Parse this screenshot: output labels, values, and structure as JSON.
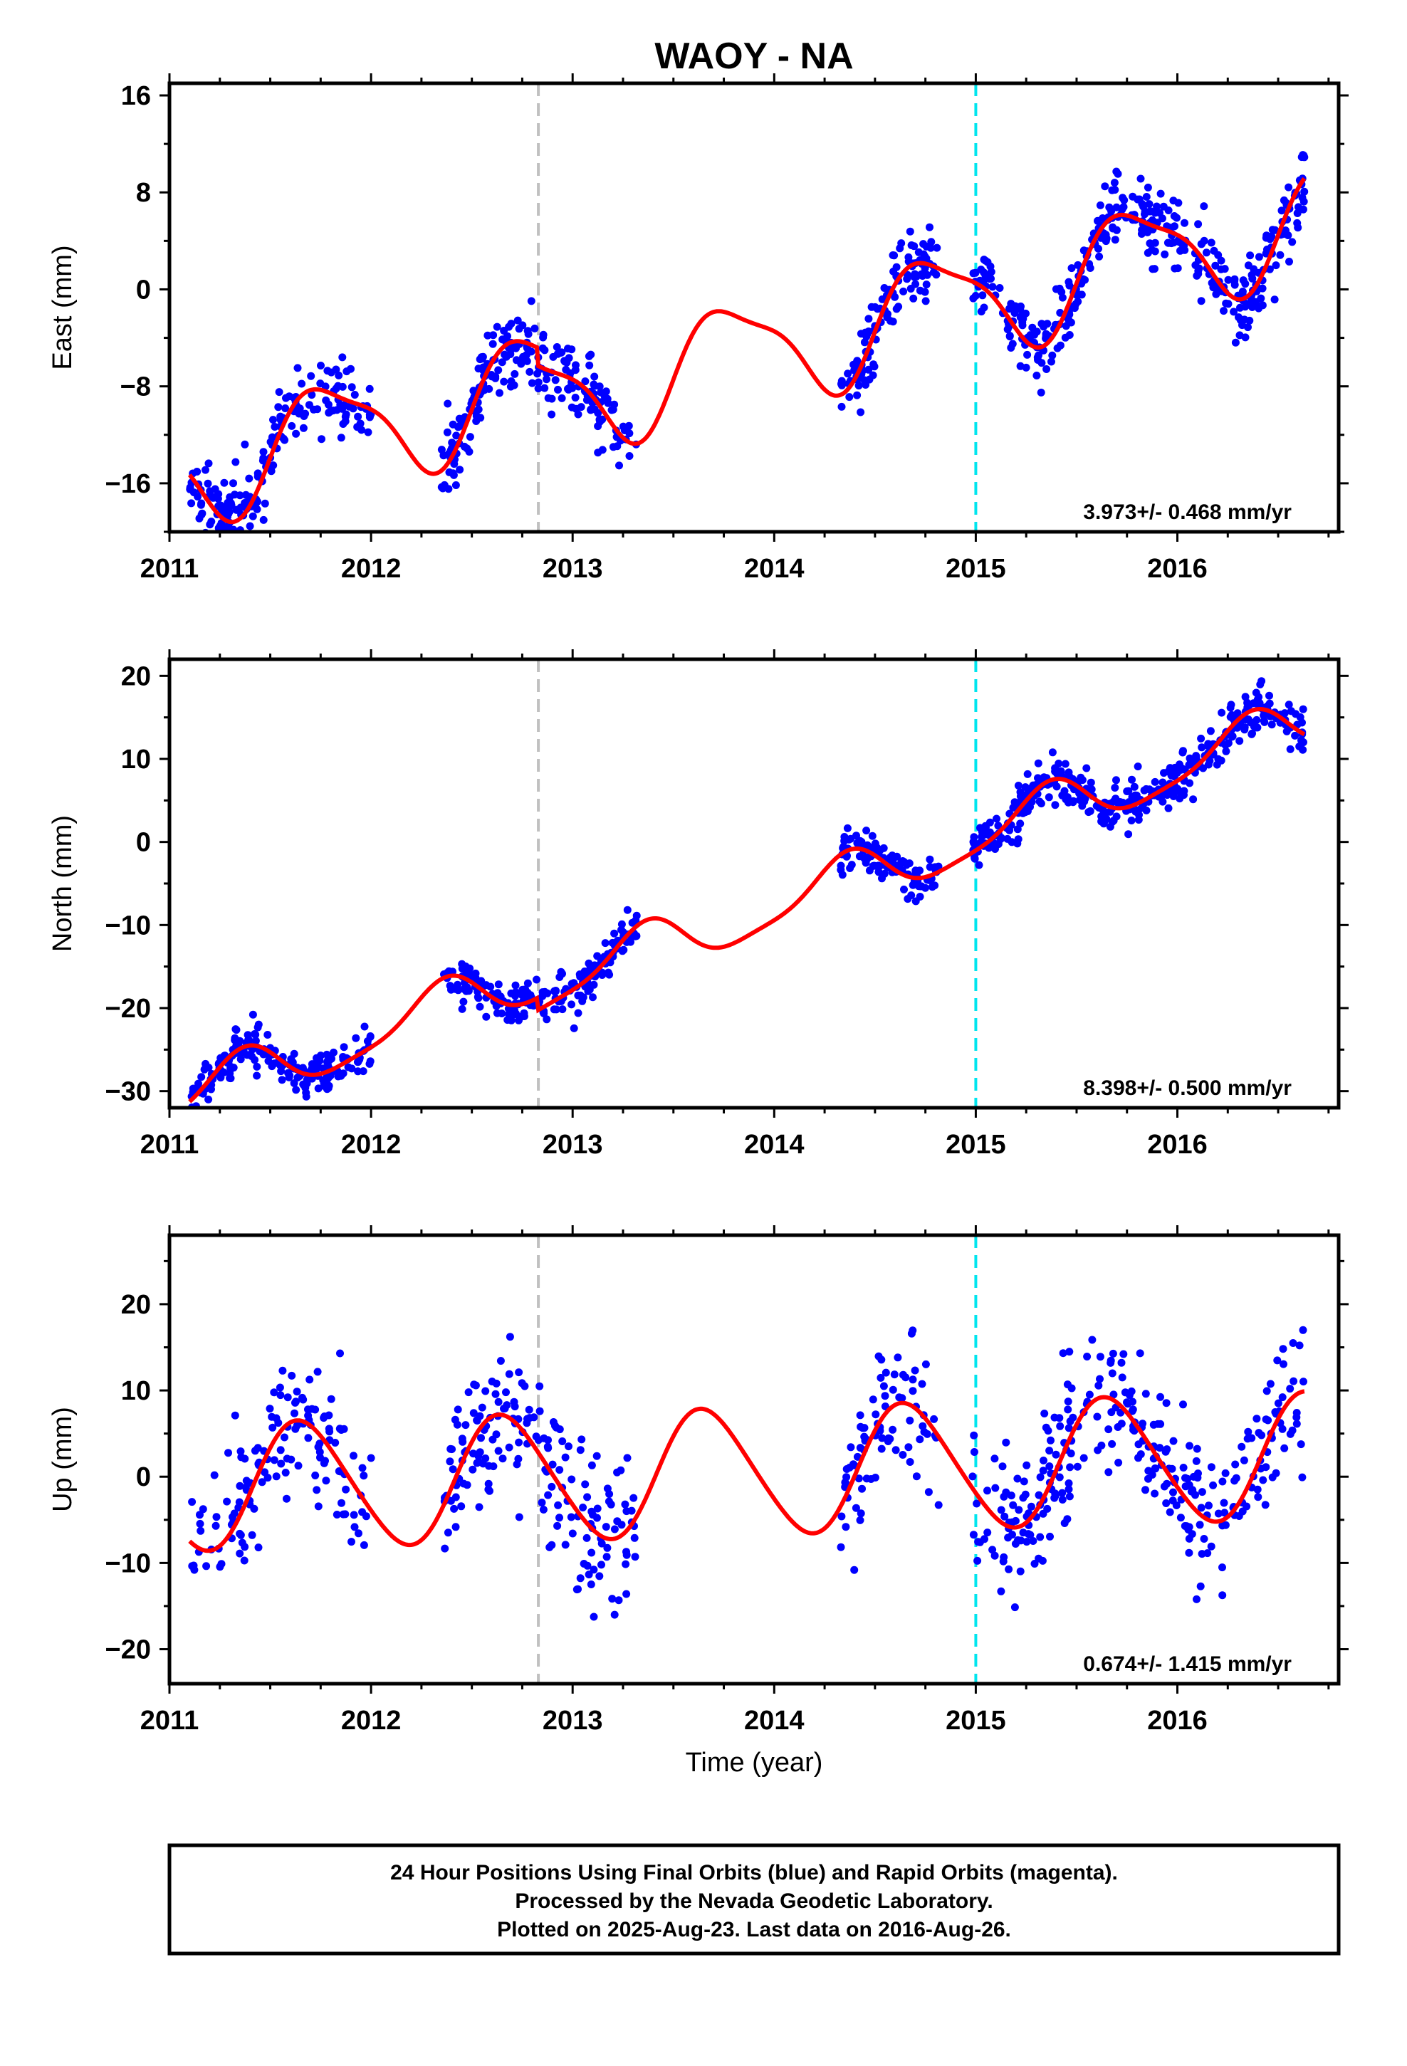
{
  "title": "WAOY - NA",
  "xlabel": "Time (year)",
  "footer": {
    "line1": "24 Hour Positions Using Final Orbits (blue) and Rapid Orbits (magenta).",
    "line2": "Processed by the Nevada Geodetic Laboratory.",
    "line3": "Plotted on 2025-Aug-23. Last data on 2016-Aug-26."
  },
  "colors": {
    "points": "#0000ff",
    "model": "#ff0000",
    "equipment_change_line": "#c0c0c0",
    "year_boundary_line": "#00e5ee"
  },
  "chart_data": [
    {
      "type": "scatter",
      "ylabel": "East (mm)",
      "rate_label": "3.973+/- 0.468 mm/yr",
      "xlim": [
        2011.0,
        2016.8
      ],
      "ylim": [
        -20,
        17
      ],
      "xticks": [
        2011,
        2012,
        2013,
        2014,
        2015,
        2016
      ],
      "yticks": [
        -16,
        -8,
        0,
        8,
        16
      ],
      "vlines": [
        {
          "x": 2012.83,
          "style": "gray-dashed"
        },
        {
          "x": 2015.0,
          "style": "cyan-dashed"
        }
      ],
      "model": {
        "a0": -4.45,
        "rate": 3.973,
        "t0": 2013.7,
        "s1": -4.2,
        "c1": 1.0,
        "s2": 1.1,
        "c2": 0.3,
        "offsets": [
          {
            "t": 2012.83,
            "dy": -1.5
          }
        ]
      },
      "data_segments": [
        [
          2011.1,
          2012.0
        ],
        [
          2012.35,
          2013.32
        ],
        [
          2014.33,
          2014.82
        ],
        [
          2014.98,
          2015.35
        ],
        [
          2015.35,
          2016.05
        ],
        [
          2016.08,
          2016.63
        ]
      ],
      "scatter_sigma": 1.6,
      "n_points": 900,
      "seed": 11
    },
    {
      "type": "scatter",
      "ylabel": "North (mm)",
      "rate_label": "8.398+/- 0.500 mm/yr",
      "xlim": [
        2011.0,
        2016.8
      ],
      "ylim": [
        -32,
        22
      ],
      "xticks": [
        2011,
        2012,
        2013,
        2014,
        2015,
        2016
      ],
      "yticks": [
        -30,
        -20,
        -10,
        0,
        10,
        20
      ],
      "vlines": [
        {
          "x": 2012.83,
          "style": "gray-dashed"
        },
        {
          "x": 2015.0,
          "style": "cyan-dashed"
        }
      ],
      "model": {
        "a0": -8.0,
        "rate": 8.398,
        "t0": 2013.8,
        "s1": 2.5,
        "c1": -1.8,
        "s2": -0.7,
        "c2": 0.2,
        "offsets": [
          {
            "t": 2012.83,
            "dy": -1.5
          }
        ]
      },
      "data_segments": [
        [
          2011.1,
          2012.0
        ],
        [
          2012.35,
          2013.32
        ],
        [
          2014.33,
          2014.82
        ],
        [
          2014.98,
          2016.63
        ]
      ],
      "scatter_sigma": 1.3,
      "n_points": 900,
      "seed": 23
    },
    {
      "type": "scatter",
      "ylabel": "Up (mm)",
      "rate_label": "0.674+/- 1.415 mm/yr",
      "xlim": [
        2011.0,
        2016.8
      ],
      "ylim": [
        -24,
        28
      ],
      "xticks": [
        2011,
        2012,
        2013,
        2014,
        2015,
        2016
      ],
      "yticks": [
        -20,
        -10,
        0,
        10,
        20
      ],
      "vlines": [
        {
          "x": 2012.83,
          "style": "gray-dashed"
        },
        {
          "x": 2015.0,
          "style": "cyan-dashed"
        }
      ],
      "model": {
        "a0": 0.5,
        "rate": 0.674,
        "t0": 2013.8,
        "s1": -6.2,
        "c1": -3.8,
        "s2": 0.4,
        "c2": 0.6,
        "offsets": []
      },
      "data_segments": [
        [
          2011.1,
          2012.0
        ],
        [
          2012.35,
          2013.32
        ],
        [
          2014.33,
          2014.82
        ],
        [
          2014.98,
          2016.63
        ]
      ],
      "scatter_sigma": 4.2,
      "n_points": 700,
      "seed": 37
    }
  ]
}
